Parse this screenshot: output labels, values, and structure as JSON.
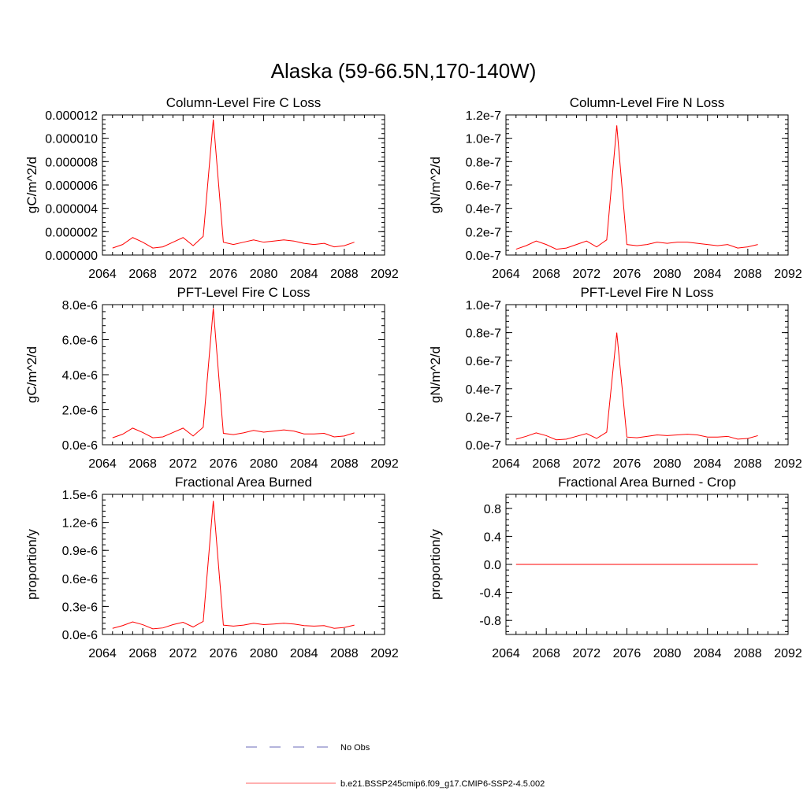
{
  "figure": {
    "title": "Alaska (59-66.5N,170-140W)"
  },
  "legend": {
    "items": [
      {
        "label": "No Obs",
        "style": "dashed",
        "color": "#6a6ab8"
      },
      {
        "label": "b.e21.BSSP245cmip6.f09_g17.CMIP6-SSP2-4.5.002",
        "style": "solid",
        "color": "#ff6060"
      }
    ]
  },
  "chart_data": [
    {
      "type": "line",
      "title": "Column-Level Fire C Loss",
      "ylabel": "gC/m^2/d",
      "xlim": [
        2064,
        2092
      ],
      "ylim": [
        0,
        1.2e-05
      ],
      "xticks": [
        2064,
        2068,
        2072,
        2076,
        2080,
        2084,
        2088,
        2092
      ],
      "xtick_labels": [
        "2064",
        "2068",
        "2072",
        "2076",
        "2080",
        "2084",
        "2088",
        "2092"
      ],
      "yticks": [
        0,
        2e-06,
        4e-06,
        6e-06,
        8e-06,
        1e-05,
        1.2e-05
      ],
      "ytick_labels": [
        "0.000000",
        "0.000002",
        "0.000004",
        "0.000006",
        "0.000008",
        "0.000010",
        "0.000012"
      ],
      "series": [
        {
          "color": "#ff0000",
          "x": [
            2065,
            2066,
            2067,
            2068,
            2069,
            2070,
            2071,
            2072,
            2073,
            2074,
            2075,
            2076,
            2077,
            2078,
            2079,
            2080,
            2081,
            2082,
            2083,
            2084,
            2085,
            2086,
            2087,
            2088,
            2089
          ],
          "values": [
            6e-07,
            9e-07,
            1.5e-06,
            1.1e-06,
            6e-07,
            7e-07,
            1.1e-06,
            1.5e-06,
            8e-07,
            1.6e-06,
            1.16e-05,
            1.1e-06,
            9e-07,
            1.1e-06,
            1.3e-06,
            1.1e-06,
            1.2e-06,
            1.3e-06,
            1.2e-06,
            1e-06,
            9e-07,
            1e-06,
            7e-07,
            8e-07,
            1.1e-06
          ]
        }
      ]
    },
    {
      "type": "line",
      "title": "Column-Level Fire N Loss",
      "ylabel": "gN/m^2/d",
      "xlim": [
        2064,
        2092
      ],
      "ylim": [
        0,
        1.2e-07
      ],
      "xticks": [
        2064,
        2068,
        2072,
        2076,
        2080,
        2084,
        2088,
        2092
      ],
      "xtick_labels": [
        "2064",
        "2068",
        "2072",
        "2076",
        "2080",
        "2084",
        "2088",
        "2092"
      ],
      "yticks": [
        0,
        2e-08,
        4e-08,
        6e-08,
        8e-08,
        1e-07,
        1.2e-07
      ],
      "ytick_labels": [
        "0.0e-7",
        "0.2e-7",
        "0.4e-7",
        "0.6e-7",
        "0.8e-7",
        "1.0e-7",
        "1.2e-7"
      ],
      "series": [
        {
          "color": "#ff0000",
          "x": [
            2065,
            2066,
            2067,
            2068,
            2069,
            2070,
            2071,
            2072,
            2073,
            2074,
            2075,
            2076,
            2077,
            2078,
            2079,
            2080,
            2081,
            2082,
            2083,
            2084,
            2085,
            2086,
            2087,
            2088,
            2089
          ],
          "values": [
            5e-09,
            8e-09,
            1.2e-08,
            9e-09,
            5e-09,
            6e-09,
            9e-09,
            1.2e-08,
            7e-09,
            1.3e-08,
            1.11e-07,
            9e-09,
            8e-09,
            9e-09,
            1.1e-08,
            1e-08,
            1.1e-08,
            1.1e-08,
            1e-08,
            9e-09,
            8e-09,
            9e-09,
            6e-09,
            7e-09,
            9e-09
          ]
        }
      ]
    },
    {
      "type": "line",
      "title": "PFT-Level Fire C Loss",
      "ylabel": "gC/m^2/d",
      "xlim": [
        2064,
        2092
      ],
      "ylim": [
        0,
        8e-06
      ],
      "xticks": [
        2064,
        2068,
        2072,
        2076,
        2080,
        2084,
        2088,
        2092
      ],
      "xtick_labels": [
        "2064",
        "2068",
        "2072",
        "2076",
        "2080",
        "2084",
        "2088",
        "2092"
      ],
      "yticks": [
        0,
        2e-06,
        4e-06,
        6e-06,
        8e-06
      ],
      "ytick_labels": [
        "0.0e-6",
        "2.0e-6",
        "4.0e-6",
        "6.0e-6",
        "8.0e-6"
      ],
      "series": [
        {
          "color": "#ff0000",
          "x": [
            2065,
            2066,
            2067,
            2068,
            2069,
            2070,
            2071,
            2072,
            2073,
            2074,
            2075,
            2076,
            2077,
            2078,
            2079,
            2080,
            2081,
            2082,
            2083,
            2084,
            2085,
            2086,
            2087,
            2088,
            2089
          ],
          "values": [
            4e-07,
            6e-07,
            9.5e-07,
            7e-07,
            4e-07,
            4.5e-07,
            7e-07,
            9.5e-07,
            5e-07,
            1e-06,
            7.8e-06,
            6.5e-07,
            5.8e-07,
            6.8e-07,
            8.2e-07,
            7.2e-07,
            7.8e-07,
            8.5e-07,
            7.8e-07,
            6.2e-07,
            6.2e-07,
            6.5e-07,
            4.5e-07,
            5e-07,
            6.8e-07
          ]
        }
      ]
    },
    {
      "type": "line",
      "title": "PFT-Level Fire N Loss",
      "ylabel": "gN/m^2/d",
      "xlim": [
        2064,
        2092
      ],
      "ylim": [
        0,
        1e-07
      ],
      "xticks": [
        2064,
        2068,
        2072,
        2076,
        2080,
        2084,
        2088,
        2092
      ],
      "xtick_labels": [
        "2064",
        "2068",
        "2072",
        "2076",
        "2080",
        "2084",
        "2088",
        "2092"
      ],
      "yticks": [
        0,
        2e-08,
        4e-08,
        6e-08,
        8e-08,
        1e-07
      ],
      "ytick_labels": [
        "0.0e-7",
        "0.2e-7",
        "0.4e-7",
        "0.6e-7",
        "0.8e-7",
        "1.0e-7"
      ],
      "series": [
        {
          "color": "#ff0000",
          "x": [
            2065,
            2066,
            2067,
            2068,
            2069,
            2070,
            2071,
            2072,
            2073,
            2074,
            2075,
            2076,
            2077,
            2078,
            2079,
            2080,
            2081,
            2082,
            2083,
            2084,
            2085,
            2086,
            2087,
            2088,
            2089
          ],
          "values": [
            4e-09,
            6e-09,
            8.5e-09,
            6.5e-09,
            3.5e-09,
            4e-09,
            6e-09,
            8e-09,
            4.5e-09,
            9e-09,
            8e-08,
            5.5e-09,
            5e-09,
            6e-09,
            7e-09,
            6.5e-09,
            7e-09,
            7.5e-09,
            7e-09,
            5.5e-09,
            5.5e-09,
            6e-09,
            4e-09,
            4.5e-09,
            6.5e-09
          ]
        }
      ]
    },
    {
      "type": "line",
      "title": "Fractional Area Burned",
      "ylabel": "proportion/y",
      "xlim": [
        2064,
        2092
      ],
      "ylim": [
        0,
        1.5e-06
      ],
      "xticks": [
        2064,
        2068,
        2072,
        2076,
        2080,
        2084,
        2088,
        2092
      ],
      "xtick_labels": [
        "2064",
        "2068",
        "2072",
        "2076",
        "2080",
        "2084",
        "2088",
        "2092"
      ],
      "yticks": [
        0,
        3e-07,
        6e-07,
        9e-07,
        1.2e-06,
        1.5e-06
      ],
      "ytick_labels": [
        "0.0e-6",
        "0.3e-6",
        "0.6e-6",
        "0.9e-6",
        "1.2e-6",
        "1.5e-6"
      ],
      "series": [
        {
          "color": "#ff0000",
          "x": [
            2065,
            2066,
            2067,
            2068,
            2069,
            2070,
            2071,
            2072,
            2073,
            2074,
            2075,
            2076,
            2077,
            2078,
            2079,
            2080,
            2081,
            2082,
            2083,
            2084,
            2085,
            2086,
            2087,
            2088,
            2089
          ],
          "values": [
            6.5e-08,
            9.5e-08,
            1.35e-07,
            1.05e-07,
            6e-08,
            7e-08,
            1.05e-07,
            1.3e-07,
            8e-08,
            1.4e-07,
            1.43e-06,
            1e-07,
            9e-08,
            1e-07,
            1.2e-07,
            1.05e-07,
            1.12e-07,
            1.2e-07,
            1.12e-07,
            9.5e-08,
            9e-08,
            9.5e-08,
            6.5e-08,
            7.5e-08,
            1e-07
          ]
        }
      ]
    },
    {
      "type": "line",
      "title": "Fractional Area Burned - Crop",
      "ylabel": "proportion/y",
      "xlim": [
        2064,
        2092
      ],
      "ylim": [
        -1,
        1
      ],
      "xticks": [
        2064,
        2068,
        2072,
        2076,
        2080,
        2084,
        2088,
        2092
      ],
      "xtick_labels": [
        "2064",
        "2068",
        "2072",
        "2076",
        "2080",
        "2084",
        "2088",
        "2092"
      ],
      "yticks": [
        -0.8,
        -0.4,
        0,
        0.4,
        0.8
      ],
      "ytick_labels": [
        "-0.8",
        "-0.4",
        "0.0",
        "0.4",
        "0.8"
      ],
      "series": [
        {
          "color": "#ff0000",
          "x": [
            2065,
            2066,
            2067,
            2068,
            2069,
            2070,
            2071,
            2072,
            2073,
            2074,
            2075,
            2076,
            2077,
            2078,
            2079,
            2080,
            2081,
            2082,
            2083,
            2084,
            2085,
            2086,
            2087,
            2088,
            2089
          ],
          "values": [
            0,
            0,
            0,
            0,
            0,
            0,
            0,
            0,
            0,
            0,
            0,
            0,
            0,
            0,
            0,
            0,
            0,
            0,
            0,
            0,
            0,
            0,
            0,
            0,
            0
          ]
        }
      ]
    }
  ]
}
